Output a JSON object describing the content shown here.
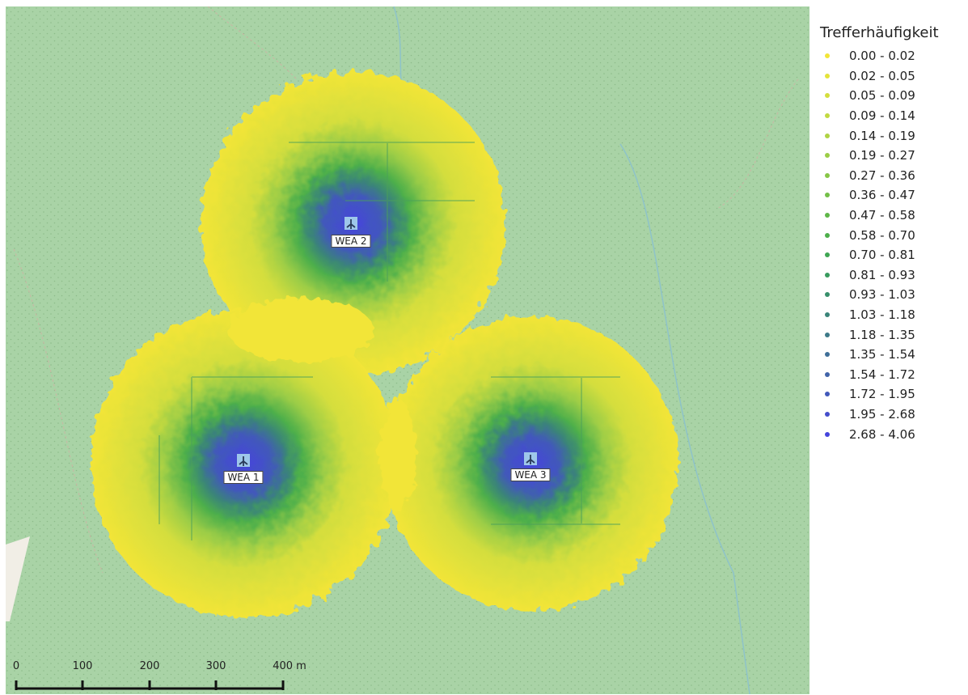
{
  "map": {
    "background_color": "#a9d3a6",
    "turbines": [
      {
        "label": "WEA 2"
      },
      {
        "label": "WEA 1"
      },
      {
        "label": "WEA 3"
      }
    ],
    "scalebar": {
      "ticks": [
        "0",
        "100",
        "200",
        "300",
        "400 m"
      ]
    }
  },
  "legend": {
    "title": "Trefferhäufigkeit",
    "items": [
      {
        "label": "0.00 - 0.02",
        "color": "#f2e537"
      },
      {
        "label": "0.02 - 0.05",
        "color": "#e4e33a"
      },
      {
        "label": "0.05 - 0.09",
        "color": "#d4de3e"
      },
      {
        "label": "0.09 - 0.14",
        "color": "#c2d941"
      },
      {
        "label": "0.14 - 0.19",
        "color": "#b0d344"
      },
      {
        "label": "0.19 - 0.27",
        "color": "#9ccd46"
      },
      {
        "label": "0.27 - 0.36",
        "color": "#88c647"
      },
      {
        "label": "0.36 - 0.47",
        "color": "#74bf48"
      },
      {
        "label": "0.47 - 0.58",
        "color": "#5fb748"
      },
      {
        "label": "0.58 - 0.70",
        "color": "#4daf4b"
      },
      {
        "label": "0.70 - 0.81",
        "color": "#3fa653"
      },
      {
        "label": "0.81 - 0.93",
        "color": "#389b5e"
      },
      {
        "label": "0.93 - 1.03",
        "color": "#378f6b"
      },
      {
        "label": "1.03 - 1.18",
        "color": "#3a8479"
      },
      {
        "label": "1.18 - 1.35",
        "color": "#3d7a88"
      },
      {
        "label": "1.35 - 1.54",
        "color": "#3f6f98"
      },
      {
        "label": "1.54 - 1.72",
        "color": "#4164a9"
      },
      {
        "label": "1.72 - 1.95",
        "color": "#4259ba"
      },
      {
        "label": "1.95 - 2.68",
        "color": "#444ecb"
      },
      {
        "label": "2.68 - 4.06",
        "color": "#4545dc"
      }
    ]
  }
}
